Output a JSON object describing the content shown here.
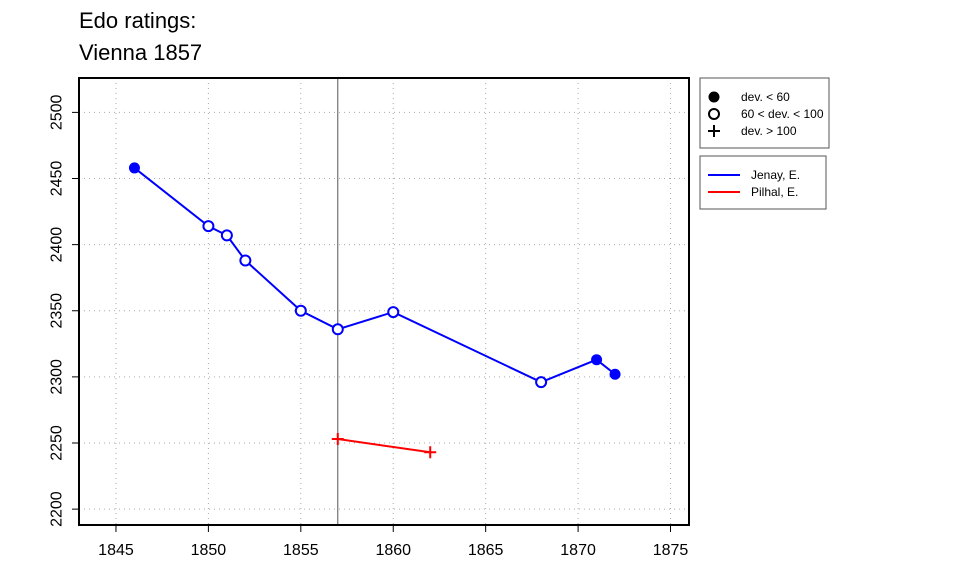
{
  "chart_data": {
    "type": "line",
    "title_line1": "Edo ratings:",
    "title_line2": "Vienna 1857",
    "xlim": [
      1843,
      1876
    ],
    "ylim": [
      2188,
      2526
    ],
    "x_ticks": [
      1845,
      1850,
      1855,
      1860,
      1865,
      1870,
      1875
    ],
    "y_ticks": [
      2200,
      2250,
      2300,
      2350,
      2400,
      2450,
      2500
    ],
    "grid": true,
    "vline_x": 1857,
    "marker_legend": [
      {
        "marker": "filled",
        "label": "dev. < 60"
      },
      {
        "marker": "open",
        "label": "60 < dev. < 100"
      },
      {
        "marker": "plus",
        "label": "dev. > 100"
      }
    ],
    "series": [
      {
        "name": "Jenay, E.",
        "color": "#0000ff",
        "points": [
          {
            "x": 1846,
            "y": 2458,
            "marker": "filled"
          },
          {
            "x": 1850,
            "y": 2414,
            "marker": "open"
          },
          {
            "x": 1851,
            "y": 2407,
            "marker": "open"
          },
          {
            "x": 1852,
            "y": 2388,
            "marker": "open"
          },
          {
            "x": 1855,
            "y": 2350,
            "marker": "open"
          },
          {
            "x": 1857,
            "y": 2336,
            "marker": "open"
          },
          {
            "x": 1860,
            "y": 2349,
            "marker": "open"
          },
          {
            "x": 1868,
            "y": 2296,
            "marker": "open"
          },
          {
            "x": 1871,
            "y": 2313,
            "marker": "filled"
          },
          {
            "x": 1872,
            "y": 2302,
            "marker": "filled"
          }
        ]
      },
      {
        "name": "Pilhal, E.",
        "color": "#ff0000",
        "points": [
          {
            "x": 1857,
            "y": 2253,
            "marker": "plus"
          },
          {
            "x": 1862,
            "y": 2243,
            "marker": "plus"
          }
        ]
      }
    ]
  }
}
